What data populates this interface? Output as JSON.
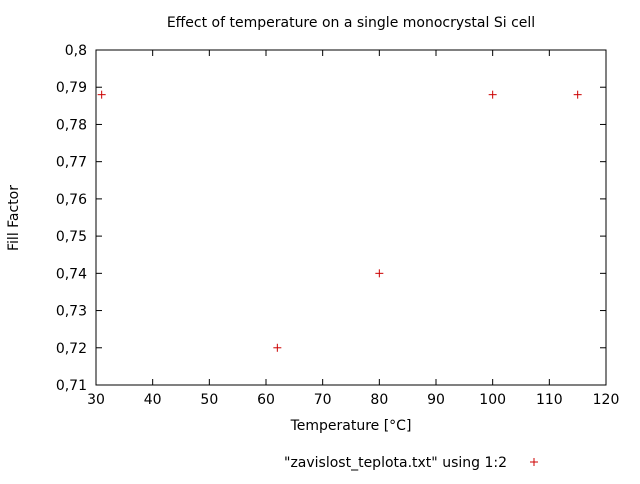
{
  "chart_data": {
    "type": "scatter",
    "title": "Effect of temperature on a single monocrystal Si cell",
    "xlabel": "Temperature [°C]",
    "ylabel": "Fill Factor",
    "xlim": [
      30,
      120
    ],
    "ylim": [
      0.71,
      0.8
    ],
    "xticks": [
      30,
      40,
      50,
      60,
      70,
      80,
      90,
      100,
      110,
      120
    ],
    "xtick_labels": [
      "30",
      "40",
      "50",
      "60",
      "70",
      "80",
      "90",
      "100",
      "110",
      "120"
    ],
    "yticks": [
      0.71,
      0.72,
      0.73,
      0.74,
      0.75,
      0.76,
      0.77,
      0.78,
      0.79,
      0.8
    ],
    "ytick_labels": [
      "0,71",
      "0,72",
      "0,73",
      "0,74",
      "0,75",
      "0,76",
      "0,77",
      "0,78",
      "0,79",
      "0,8"
    ],
    "grid": false,
    "border": "box",
    "legend_position": "bottom-center",
    "axis_color": "#000000",
    "series": [
      {
        "name": "\"zavislost_teplota.txt\" using 1:2",
        "marker": "plus",
        "color": "#cc0000",
        "points": [
          [
            31,
            0.788
          ],
          [
            62,
            0.72
          ],
          [
            80,
            0.74
          ],
          [
            100,
            0.788
          ],
          [
            115,
            0.788
          ]
        ]
      }
    ]
  }
}
